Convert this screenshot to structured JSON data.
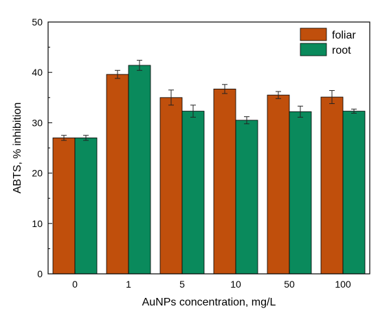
{
  "chart_data": {
    "type": "bar",
    "xlabel": "AuNPs concentration, mg/L",
    "ylabel": "ABTS, % inhibition",
    "ylim": [
      0,
      50
    ],
    "yticks": [
      0,
      10,
      20,
      30,
      40,
      50
    ],
    "categories": [
      "0",
      "1",
      "5",
      "10",
      "50",
      "100"
    ],
    "series": [
      {
        "name": "foliar",
        "color": "#c04f0c",
        "values": [
          27.0,
          39.6,
          35.0,
          36.7,
          35.5,
          35.1
        ],
        "errors": [
          0.5,
          0.8,
          1.5,
          0.9,
          0.7,
          1.3
        ]
      },
      {
        "name": "root",
        "color": "#0a8a5c",
        "values": [
          27.0,
          41.4,
          32.3,
          30.5,
          32.2,
          32.3
        ],
        "errors": [
          0.5,
          1.0,
          1.2,
          0.7,
          1.1,
          0.4
        ]
      }
    ],
    "legend": "top-right",
    "grid": false
  }
}
